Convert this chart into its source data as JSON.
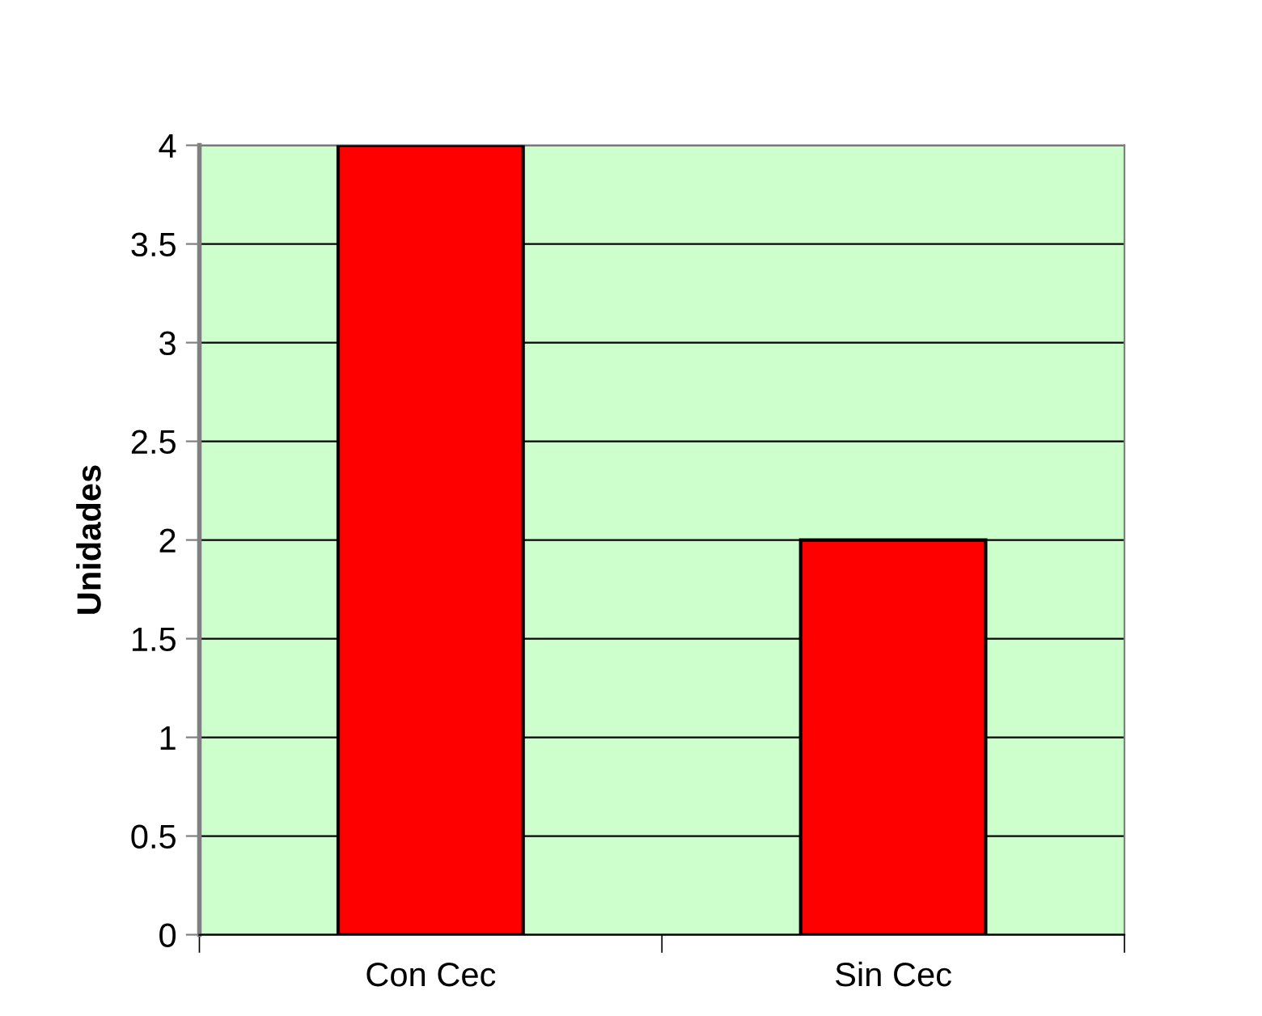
{
  "chart_data": {
    "type": "bar",
    "ylabel": "Unidades",
    "categories": [
      "Con Cec",
      "Sin Cec"
    ],
    "values": [
      4,
      2
    ],
    "color": "#ff0000",
    "ylim": [
      0,
      4
    ],
    "yticks": [
      0,
      0.5,
      1,
      1.5,
      2,
      2.5,
      3,
      3.5,
      4
    ],
    "grid": "y"
  }
}
